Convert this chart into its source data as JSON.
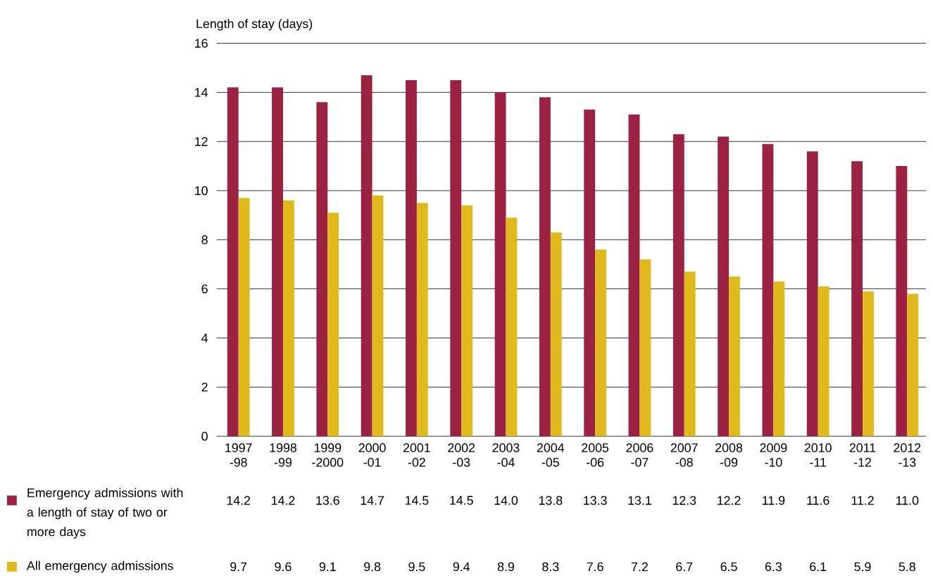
{
  "chart_data": {
    "type": "bar",
    "ylabel": "Length of stay (days)",
    "categories": [
      "1997 -98",
      "1998 -99",
      "1999 -2000",
      "2000 -01",
      "2001 -02",
      "2002 -03",
      "2003 -04",
      "2004 -05",
      "2005 -06",
      "2006 -07",
      "2007 -08",
      "2008 -09",
      "2009 -10",
      "2010 -11",
      "2011 -12",
      "2012 -13"
    ],
    "series": [
      {
        "name": "Emergency admissions with a length of stay of two or more days",
        "color": "#9b2242",
        "values": [
          14.2,
          14.2,
          13.6,
          14.7,
          14.5,
          14.5,
          14.0,
          13.8,
          13.3,
          13.1,
          12.3,
          12.2,
          11.9,
          11.6,
          11.2,
          11.0
        ],
        "value_labels": [
          "14.2",
          "14.2",
          "13.6",
          "14.7",
          "14.5",
          "14.5",
          "14.0",
          "13.8",
          "13.3",
          "13.1",
          "12.3",
          "12.2",
          "11.9",
          "11.6",
          "11.2",
          "11.0"
        ]
      },
      {
        "name": "All emergency admissions",
        "color": "#e0b91a",
        "values": [
          9.7,
          9.6,
          9.1,
          9.8,
          9.5,
          9.4,
          8.9,
          8.3,
          7.6,
          7.2,
          6.7,
          6.5,
          6.3,
          6.1,
          5.9,
          5.8
        ],
        "value_labels": [
          "9.7",
          "9.6",
          "9.1",
          "9.8",
          "9.5",
          "9.4",
          "8.9",
          "8.3",
          "7.6",
          "7.2",
          "6.7",
          "6.5",
          "6.3",
          "6.1",
          "5.9",
          "5.8"
        ]
      }
    ],
    "ylim": [
      0,
      16
    ],
    "yticks": [
      0,
      2,
      4,
      6,
      8,
      10,
      12,
      14,
      16
    ],
    "grid": "y",
    "legend": "bottom left"
  }
}
